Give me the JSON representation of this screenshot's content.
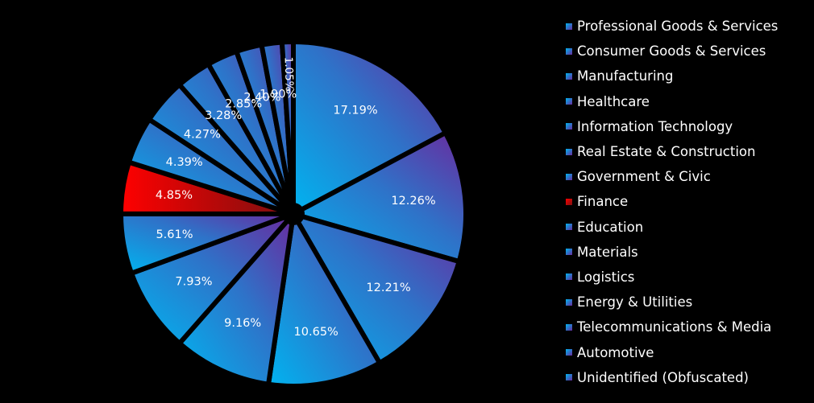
{
  "chart_data": {
    "type": "pie",
    "categories": [
      "Professional Goods & Services",
      "Consumer Goods & Services",
      "Manufacturing",
      "Healthcare",
      "Information Technology",
      "Real Estate & Construction",
      "Government & Civic",
      "Finance",
      "Education",
      "Materials",
      "Logistics",
      "Energy & Utilities",
      "Telecommunications & Media",
      "Automotive",
      "Unidentified (Obfuscated)"
    ],
    "values": [
      17.19,
      12.26,
      12.21,
      10.65,
      9.16,
      7.93,
      5.61,
      4.85,
      4.39,
      4.27,
      3.28,
      2.85,
      2.4,
      1.9,
      1.05
    ],
    "data_labels": [
      "17.19%",
      "12.26%",
      "12.21%",
      "10.65%",
      "9.16%",
      "7.93%",
      "5.61%",
      "4.85%",
      "4.39%",
      "4.27%",
      "3.28%",
      "2.85%",
      "2.40%",
      "1.90%",
      "1.05%"
    ],
    "highlight_category": "Finance",
    "legend_position": "right",
    "colors": {
      "background": "#000000",
      "blue_light": "#00b4f0",
      "blue_mid": "#2f72c8",
      "purple": "#6a2a9e",
      "red_light": "#ff0000",
      "red_dark": "#7a1010",
      "text": "#ffffff"
    }
  }
}
